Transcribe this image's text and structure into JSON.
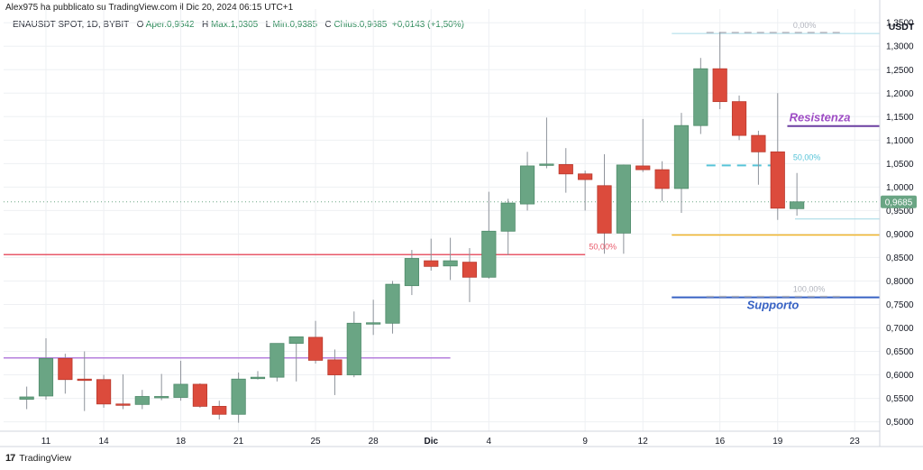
{
  "header": {
    "publisher": "Alex975 ha pubblicato su TradingView.com il Dic 20, 2024 06:15 UTC+1",
    "symbol": "ENAUSDT SPOT, 1D, BYBIT",
    "open_label": "O",
    "open": "Aper.0,9542",
    "high_label": "H",
    "high": "Max.1,0305",
    "low_label": "L",
    "low": "Min.0,9385",
    "close_label": "C",
    "close": "Chius.0,9685",
    "change": "+0,0143 (+1,50%)"
  },
  "footer": {
    "brand": "TradingView",
    "brand_mark": "17"
  },
  "colors": {
    "up": "#6aa584",
    "down": "#dc4b3c",
    "grid": "#eef0f3",
    "resistance": "#6b3fa0",
    "support": "#3762c4",
    "horizontal_red": "#e8596a",
    "horizontal_purple": "#b57fdc",
    "yellow": "#f0b429",
    "cyan": "#56c3d8"
  },
  "chart_data": {
    "type": "candlestick",
    "currency": "USDT",
    "ylim": [
      0.48,
      1.36
    ],
    "y_ticks": [
      "0,5000",
      "0,5500",
      "0,6000",
      "0,6500",
      "0,7000",
      "0,7500",
      "0,8000",
      "0,8500",
      "0,9000",
      "0,9500",
      "1,0000",
      "1,0500",
      "1,1000",
      "1,1500",
      "1,2000",
      "1,2500",
      "1,3000",
      "1,3500"
    ],
    "y_tick_values": [
      0.5,
      0.55,
      0.6,
      0.65,
      0.7,
      0.75,
      0.8,
      0.85,
      0.9,
      0.95,
      1.0,
      1.05,
      1.1,
      1.15,
      1.2,
      1.25,
      1.3,
      1.35
    ],
    "x_ticks": [
      {
        "day": 1,
        "label": "11"
      },
      {
        "day": 4,
        "label": "14"
      },
      {
        "day": 8,
        "label": "18"
      },
      {
        "day": 11,
        "label": "21"
      },
      {
        "day": 15,
        "label": "25"
      },
      {
        "day": 18,
        "label": "28"
      },
      {
        "day": 21,
        "label": "Dic"
      },
      {
        "day": 24,
        "label": "4"
      },
      {
        "day": 29,
        "label": "9"
      },
      {
        "day": 32,
        "label": "12"
      },
      {
        "day": 36,
        "label": "16"
      },
      {
        "day": 39,
        "label": "19"
      },
      {
        "day": 43,
        "label": "23"
      }
    ],
    "x_range": [
      -1.2,
      44.3
    ],
    "candles": [
      {
        "day": 0,
        "o": 0.548,
        "h": 0.575,
        "l": 0.527,
        "c": 0.553
      },
      {
        "day": 1,
        "o": 0.555,
        "h": 0.678,
        "l": 0.547,
        "c": 0.635
      },
      {
        "day": 2,
        "o": 0.635,
        "h": 0.645,
        "l": 0.56,
        "c": 0.59
      },
      {
        "day": 3,
        "o": 0.591,
        "h": 0.65,
        "l": 0.523,
        "c": 0.589
      },
      {
        "day": 4,
        "o": 0.59,
        "h": 0.6,
        "l": 0.53,
        "c": 0.538
      },
      {
        "day": 5,
        "o": 0.538,
        "h": 0.601,
        "l": 0.527,
        "c": 0.536
      },
      {
        "day": 6,
        "o": 0.537,
        "h": 0.568,
        "l": 0.527,
        "c": 0.554
      },
      {
        "day": 7,
        "o": 0.554,
        "h": 0.602,
        "l": 0.546,
        "c": 0.554
      },
      {
        "day": 8,
        "o": 0.552,
        "h": 0.63,
        "l": 0.545,
        "c": 0.58
      },
      {
        "day": 9,
        "o": 0.58,
        "h": 0.582,
        "l": 0.53,
        "c": 0.533
      },
      {
        "day": 10,
        "o": 0.533,
        "h": 0.545,
        "l": 0.505,
        "c": 0.516
      },
      {
        "day": 11,
        "o": 0.516,
        "h": 0.605,
        "l": 0.498,
        "c": 0.591
      },
      {
        "day": 12,
        "o": 0.592,
        "h": 0.608,
        "l": 0.59,
        "c": 0.595
      },
      {
        "day": 13,
        "o": 0.595,
        "h": 0.667,
        "l": 0.586,
        "c": 0.667
      },
      {
        "day": 14,
        "o": 0.667,
        "h": 0.681,
        "l": 0.586,
        "c": 0.681
      },
      {
        "day": 15,
        "o": 0.68,
        "h": 0.715,
        "l": 0.624,
        "c": 0.631
      },
      {
        "day": 16,
        "o": 0.632,
        "h": 0.654,
        "l": 0.557,
        "c": 0.6
      },
      {
        "day": 17,
        "o": 0.6,
        "h": 0.735,
        "l": 0.595,
        "c": 0.71
      },
      {
        "day": 18,
        "o": 0.709,
        "h": 0.76,
        "l": 0.685,
        "c": 0.711
      },
      {
        "day": 19,
        "o": 0.71,
        "h": 0.8,
        "l": 0.688,
        "c": 0.793
      },
      {
        "day": 20,
        "o": 0.79,
        "h": 0.866,
        "l": 0.77,
        "c": 0.848
      },
      {
        "day": 21,
        "o": 0.843,
        "h": 0.89,
        "l": 0.822,
        "c": 0.831
      },
      {
        "day": 22,
        "o": 0.832,
        "h": 0.892,
        "l": 0.802,
        "c": 0.843
      },
      {
        "day": 23,
        "o": 0.84,
        "h": 0.87,
        "l": 0.755,
        "c": 0.808
      },
      {
        "day": 24,
        "o": 0.808,
        "h": 0.99,
        "l": 0.805,
        "c": 0.906
      },
      {
        "day": 25,
        "o": 0.906,
        "h": 0.975,
        "l": 0.855,
        "c": 0.966
      },
      {
        "day": 26,
        "o": 0.964,
        "h": 1.075,
        "l": 0.95,
        "c": 1.045
      },
      {
        "day": 27,
        "o": 1.047,
        "h": 1.148,
        "l": 1.04,
        "c": 1.049
      },
      {
        "day": 28,
        "o": 1.048,
        "h": 1.083,
        "l": 0.988,
        "c": 1.028
      },
      {
        "day": 29,
        "o": 1.028,
        "h": 1.035,
        "l": 0.95,
        "c": 1.016
      },
      {
        "day": 30,
        "o": 1.003,
        "h": 1.07,
        "l": 0.858,
        "c": 0.902
      },
      {
        "day": 31,
        "o": 0.902,
        "h": 1.048,
        "l": 0.858,
        "c": 1.047
      },
      {
        "day": 32,
        "o": 1.045,
        "h": 1.145,
        "l": 1.032,
        "c": 1.037
      },
      {
        "day": 33,
        "o": 1.037,
        "h": 1.055,
        "l": 0.97,
        "c": 0.997
      },
      {
        "day": 34,
        "o": 0.997,
        "h": 1.158,
        "l": 0.945,
        "c": 1.131
      },
      {
        "day": 35,
        "o": 1.131,
        "h": 1.275,
        "l": 1.113,
        "c": 1.252
      },
      {
        "day": 36,
        "o": 1.252,
        "h": 1.33,
        "l": 1.166,
        "c": 1.182
      },
      {
        "day": 37,
        "o": 1.182,
        "h": 1.195,
        "l": 1.1,
        "c": 1.11
      },
      {
        "day": 38,
        "o": 1.11,
        "h": 1.12,
        "l": 1.005,
        "c": 1.075
      },
      {
        "day": 39,
        "o": 1.075,
        "h": 1.2,
        "l": 0.93,
        "c": 0.955
      },
      {
        "day": 40,
        "o": 0.954,
        "h": 1.03,
        "l": 0.939,
        "c": 0.9685
      }
    ],
    "last_price": 0.9685,
    "last_price_label": "0,9685",
    "annotations": {
      "resistance_label": "Resistenza",
      "resistance_level": 1.13,
      "support_label": "Supporto",
      "support_level": 0.765,
      "fib_0_label": "0,00%",
      "fib_0_level": 1.327,
      "fib_50_label": "50,00%",
      "fib_50_level": 1.046,
      "fib_100_label": "100,00%",
      "fib_100_level": 0.765,
      "red_line_level": 0.856,
      "red_line_label": "50,00%",
      "purple_line_level": 0.636,
      "yellow_line_level": 0.898,
      "cyan_short_level": 0.932
    }
  }
}
